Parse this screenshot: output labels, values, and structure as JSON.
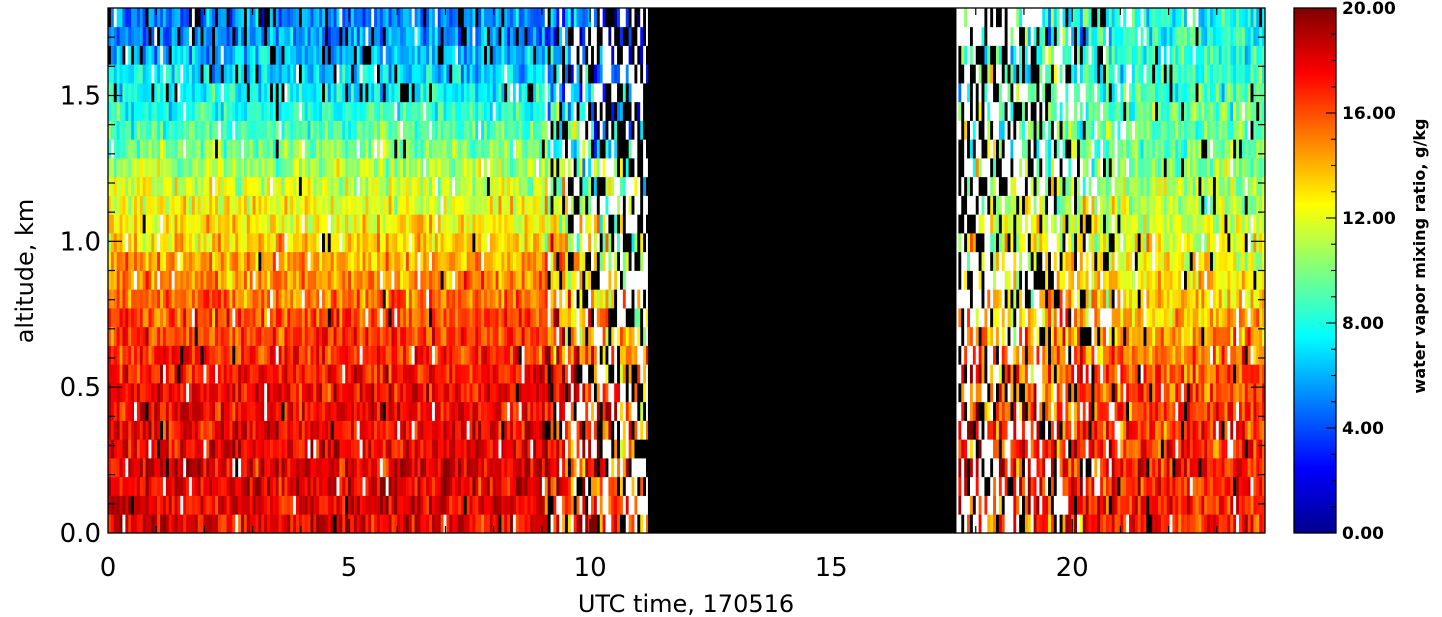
{
  "chart_data": [
    {
      "type": "heatmap",
      "title": "",
      "xlabel": "UTC time, 170516",
      "ylabel": "altitude, km",
      "xlim": [
        0,
        24
      ],
      "ylim": [
        0,
        1.8
      ],
      "x_ticks": [
        {
          "value": 0,
          "label": "0"
        },
        {
          "value": 5,
          "label": "5"
        },
        {
          "value": 10,
          "label": "10"
        },
        {
          "value": 15,
          "label": "15"
        },
        {
          "value": 20,
          "label": "20"
        }
      ],
      "y_ticks": [
        {
          "value": 0.0,
          "label": "0.0"
        },
        {
          "value": 0.5,
          "label": "0.5"
        },
        {
          "value": 1.0,
          "label": "1.0"
        },
        {
          "value": 1.5,
          "label": "1.5"
        }
      ],
      "colormap": "jet",
      "no_data_interval_utc": [
        11.2,
        17.6
      ],
      "no_data_color": "#000000",
      "mixing_ratio_profile_gkg": [
        {
          "altitude_km": 0.0,
          "night_0_9utc": 18,
          "evening_18_24utc": 17
        },
        {
          "altitude_km": 0.25,
          "night_0_9utc": 18,
          "evening_18_24utc": 17
        },
        {
          "altitude_km": 0.5,
          "night_0_9utc": 17.5,
          "evening_18_24utc": 16
        },
        {
          "altitude_km": 0.75,
          "night_0_9utc": 16,
          "evening_18_24utc": 14
        },
        {
          "altitude_km": 1.0,
          "night_0_9utc": 13.5,
          "evening_18_24utc": 12
        },
        {
          "altitude_km": 1.25,
          "night_0_9utc": 11,
          "evening_18_24utc": 10
        },
        {
          "altitude_km": 1.5,
          "night_0_9utc": 7.5,
          "evening_18_24utc": 9
        },
        {
          "altitude_km": 1.75,
          "night_0_9utc": 5,
          "evening_18_24utc": 8
        }
      ]
    },
    {
      "type": "colorbar",
      "label": "water vapor mixing ratio, g/kg",
      "range": [
        0,
        20
      ],
      "colormap": "jet",
      "ticks": [
        {
          "value": 0,
          "label": "0.00"
        },
        {
          "value": 4,
          "label": "4.00"
        },
        {
          "value": 8,
          "label": "8.00"
        },
        {
          "value": 12,
          "label": "12.00"
        },
        {
          "value": 16,
          "label": "16.00"
        },
        {
          "value": 20,
          "label": "20.00"
        }
      ]
    }
  ]
}
